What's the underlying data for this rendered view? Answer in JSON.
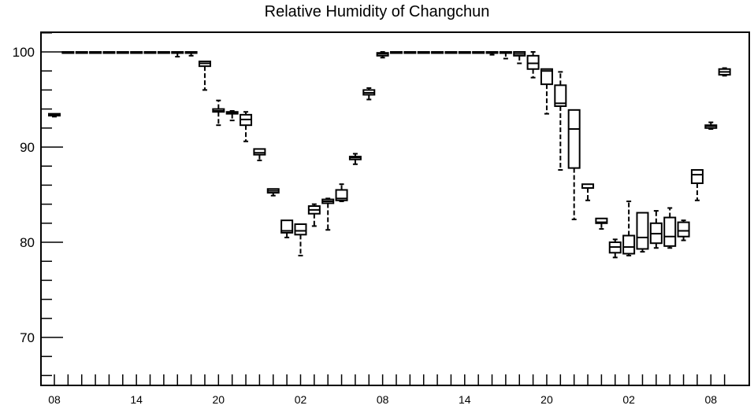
{
  "chart_data": {
    "type": "boxplot",
    "title": "Relative Humidity of Changchun",
    "xlabel": "",
    "ylabel": "",
    "ylim": [
      65,
      102
    ],
    "y_ticks": [
      70,
      80,
      90,
      100
    ],
    "x_tick_labels": [
      "08",
      "14",
      "20",
      "02",
      "08",
      "14",
      "20",
      "02",
      "08"
    ],
    "x_tick_positions": [
      0,
      6,
      12,
      18,
      24,
      30,
      36,
      42,
      48
    ],
    "grid": false,
    "boxes": [
      {
        "x": 0,
        "min": 93.2,
        "q1": 93.3,
        "median": 93.4,
        "q3": 93.5,
        "max": 93.5
      },
      {
        "x": 1,
        "min": 100,
        "q1": 100,
        "median": 100,
        "q3": 100,
        "max": 100
      },
      {
        "x": 2,
        "min": 100,
        "q1": 100,
        "median": 100,
        "q3": 100,
        "max": 100
      },
      {
        "x": 3,
        "min": 100,
        "q1": 100,
        "median": 100,
        "q3": 100,
        "max": 100
      },
      {
        "x": 4,
        "min": 100,
        "q1": 100,
        "median": 100,
        "q3": 100,
        "max": 100
      },
      {
        "x": 5,
        "min": 100,
        "q1": 100,
        "median": 100,
        "q3": 100,
        "max": 100
      },
      {
        "x": 6,
        "min": 100,
        "q1": 100,
        "median": 100,
        "q3": 100,
        "max": 100
      },
      {
        "x": 7,
        "min": 100,
        "q1": 100,
        "median": 100,
        "q3": 100,
        "max": 100
      },
      {
        "x": 8,
        "min": 100,
        "q1": 100,
        "median": 100,
        "q3": 100,
        "max": 100
      },
      {
        "x": 9,
        "min": 99.5,
        "q1": 100,
        "median": 100,
        "q3": 100,
        "max": 100
      },
      {
        "x": 10,
        "min": 99.6,
        "q1": 100,
        "median": 100,
        "q3": 100,
        "max": 100
      },
      {
        "x": 11,
        "min": 96.0,
        "q1": 98.5,
        "median": 98.8,
        "q3": 99.0,
        "max": 99.0
      },
      {
        "x": 12,
        "min": 92.3,
        "q1": 93.7,
        "median": 93.8,
        "q3": 94.0,
        "max": 94.9
      },
      {
        "x": 13,
        "min": 92.8,
        "q1": 93.5,
        "median": 93.6,
        "q3": 93.7,
        "max": 93.8
      },
      {
        "x": 14,
        "min": 90.6,
        "q1": 92.3,
        "median": 92.9,
        "q3": 93.4,
        "max": 93.7
      },
      {
        "x": 15,
        "min": 88.6,
        "q1": 89.2,
        "median": 89.4,
        "q3": 89.8,
        "max": 89.8
      },
      {
        "x": 16,
        "min": 84.9,
        "q1": 85.2,
        "median": 85.4,
        "q3": 85.6,
        "max": 85.6
      },
      {
        "x": 17,
        "min": 80.5,
        "q1": 81.0,
        "median": 81.2,
        "q3": 82.3,
        "max": 82.3
      },
      {
        "x": 18,
        "min": 78.6,
        "q1": 80.8,
        "median": 81.2,
        "q3": 81.9,
        "max": 81.9
      },
      {
        "x": 19,
        "min": 81.7,
        "q1": 83.0,
        "median": 83.4,
        "q3": 83.8,
        "max": 84.0
      },
      {
        "x": 20,
        "min": 81.3,
        "q1": 84.1,
        "median": 84.3,
        "q3": 84.5,
        "max": 84.6
      },
      {
        "x": 21,
        "min": 84.3,
        "q1": 84.4,
        "median": 84.6,
        "q3": 85.5,
        "max": 86.1
      },
      {
        "x": 22,
        "min": 88.2,
        "q1": 88.7,
        "median": 88.9,
        "q3": 89.0,
        "max": 89.3
      },
      {
        "x": 23,
        "min": 95.0,
        "q1": 95.5,
        "median": 95.7,
        "q3": 96.0,
        "max": 96.2
      },
      {
        "x": 24,
        "min": 99.4,
        "q1": 99.6,
        "median": 99.8,
        "q3": 99.9,
        "max": 100
      },
      {
        "x": 25,
        "min": 100,
        "q1": 100,
        "median": 100,
        "q3": 100,
        "max": 100
      },
      {
        "x": 26,
        "min": 100,
        "q1": 100,
        "median": 100,
        "q3": 100,
        "max": 100
      },
      {
        "x": 27,
        "min": 100,
        "q1": 100,
        "median": 100,
        "q3": 100,
        "max": 100
      },
      {
        "x": 28,
        "min": 100,
        "q1": 100,
        "median": 100,
        "q3": 100,
        "max": 100
      },
      {
        "x": 29,
        "min": 100,
        "q1": 100,
        "median": 100,
        "q3": 100,
        "max": 100
      },
      {
        "x": 30,
        "min": 100,
        "q1": 100,
        "median": 100,
        "q3": 100,
        "max": 100
      },
      {
        "x": 31,
        "min": 100,
        "q1": 100,
        "median": 100,
        "q3": 100,
        "max": 100
      },
      {
        "x": 32,
        "min": 99.7,
        "q1": 100,
        "median": 100,
        "q3": 100,
        "max": 100
      },
      {
        "x": 33,
        "min": 99.3,
        "q1": 100,
        "median": 100,
        "q3": 100,
        "max": 100
      },
      {
        "x": 34,
        "min": 98.8,
        "q1": 99.6,
        "median": 99.8,
        "q3": 100,
        "max": 100
      },
      {
        "x": 35,
        "min": 97.3,
        "q1": 98.2,
        "median": 98.8,
        "q3": 99.6,
        "max": 100
      },
      {
        "x": 36,
        "min": 93.5,
        "q1": 96.6,
        "median": 98.0,
        "q3": 98.2,
        "max": 98.2
      },
      {
        "x": 37,
        "min": 87.6,
        "q1": 94.3,
        "median": 94.6,
        "q3": 96.5,
        "max": 97.9
      },
      {
        "x": 38,
        "min": 82.4,
        "q1": 87.8,
        "median": 91.9,
        "q3": 93.9,
        "max": 93.9
      },
      {
        "x": 39,
        "min": 84.4,
        "q1": 85.7,
        "median": 85.7,
        "q3": 86.1,
        "max": 86.1
      },
      {
        "x": 40,
        "min": 81.4,
        "q1": 82.0,
        "median": 82.1,
        "q3": 82.5,
        "max": 82.5
      },
      {
        "x": 41,
        "min": 78.4,
        "q1": 78.9,
        "median": 79.5,
        "q3": 80.0,
        "max": 80.3
      },
      {
        "x": 42,
        "min": 78.6,
        "q1": 78.8,
        "median": 79.5,
        "q3": 80.7,
        "max": 84.3
      },
      {
        "x": 43,
        "min": 79.0,
        "q1": 79.3,
        "median": 80.5,
        "q3": 83.1,
        "max": 83.1
      },
      {
        "x": 44,
        "min": 79.4,
        "q1": 79.9,
        "median": 80.9,
        "q3": 82.0,
        "max": 83.3
      },
      {
        "x": 45,
        "min": 79.4,
        "q1": 79.6,
        "median": 80.6,
        "q3": 82.6,
        "max": 83.6
      },
      {
        "x": 46,
        "min": 80.2,
        "q1": 80.6,
        "median": 81.2,
        "q3": 82.1,
        "max": 82.3
      },
      {
        "x": 47,
        "min": 84.4,
        "q1": 86.2,
        "median": 87.1,
        "q3": 87.6,
        "max": 87.6
      },
      {
        "x": 48,
        "min": 91.9,
        "q1": 92.0,
        "median": 92.2,
        "q3": 92.3,
        "max": 92.6
      },
      {
        "x": 49,
        "min": 97.5,
        "q1": 97.6,
        "median": 97.9,
        "q3": 98.2,
        "max": 98.3
      }
    ]
  }
}
